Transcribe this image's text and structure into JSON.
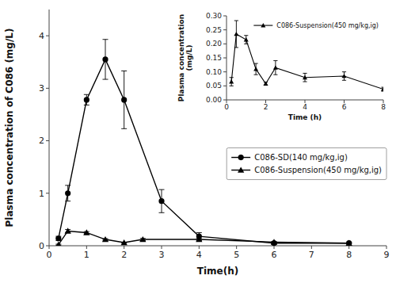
{
  "chart_data": [
    {
      "type": "line",
      "xlabel": "Time(h)",
      "ylabel": "Plasma concentration of C086 (mg/L)",
      "xlim": [
        0,
        9
      ],
      "ylim": [
        0,
        4.5
      ],
      "xticks": [
        0,
        1,
        2,
        3,
        4,
        5,
        6,
        7,
        8,
        9
      ],
      "yticks": [
        0,
        1,
        2,
        3,
        4
      ],
      "grid": false,
      "legend": "lower right",
      "series": [
        {
          "name": "C086-SD(140 mg/kg,ig)",
          "color": "#000000",
          "marker": "circle",
          "line_style": "solid",
          "x": [
            0.25,
            0.5,
            1.0,
            1.5,
            2.0,
            3.0,
            4.0,
            6.0,
            8.0
          ],
          "values": [
            0.14,
            1.0,
            2.78,
            3.55,
            2.78,
            0.85,
            0.18,
            0.05,
            0.05
          ],
          "errors": [
            0.04,
            0.15,
            0.1,
            0.38,
            0.55,
            0.22,
            0.07,
            0.01,
            0.01
          ]
        },
        {
          "name": "C086-Suspension(450 mg/kg,ig)",
          "color": "#000000",
          "marker": "triangle",
          "line_style": "solid",
          "x": [
            0.25,
            0.5,
            1.0,
            1.5,
            2.0,
            2.5,
            4.0,
            6.0,
            8.0
          ],
          "values": [
            0.02,
            0.28,
            0.25,
            0.12,
            0.06,
            0.12,
            0.12,
            0.07,
            0.05
          ],
          "errors": [
            0.01,
            0.03,
            0.02,
            0.015,
            0.005,
            0.02,
            0.02,
            0.01,
            0.005
          ]
        }
      ]
    },
    {
      "type": "line",
      "xlabel": "Time (h)",
      "ylabel": "Plasma concentration\n(mg/L)",
      "xlim": [
        0,
        8
      ],
      "ylim": [
        0.0,
        0.3
      ],
      "xticks": [
        0,
        2,
        4,
        6,
        8
      ],
      "yticks": [
        {
          "value": 0.0,
          "label": "0.00"
        },
        {
          "value": 0.05,
          "label": "0.05"
        },
        {
          "value": 0.1,
          "label": "0.10"
        },
        {
          "value": 0.15,
          "label": "0.15"
        },
        {
          "value": 0.2,
          "label": "0.20"
        },
        {
          "value": 0.25,
          "label": "0.25"
        },
        {
          "value": 0.3,
          "label": "0.30"
        }
      ],
      "grid": false,
      "legend": "upper right",
      "series": [
        {
          "name": "C086-Suspension(450 mg/kg,ig)",
          "color": "#000000",
          "marker": "triangle",
          "line_style": "solid",
          "x": [
            0.25,
            0.5,
            1.0,
            1.5,
            2.0,
            2.5,
            4.0,
            6.0,
            8.0
          ],
          "values": [
            0.065,
            0.235,
            0.215,
            0.11,
            0.058,
            0.115,
            0.08,
            0.085,
            0.038
          ],
          "errors": [
            0.015,
            0.048,
            0.015,
            0.02,
            0.005,
            0.025,
            0.015,
            0.015,
            0.007
          ]
        }
      ]
    }
  ]
}
